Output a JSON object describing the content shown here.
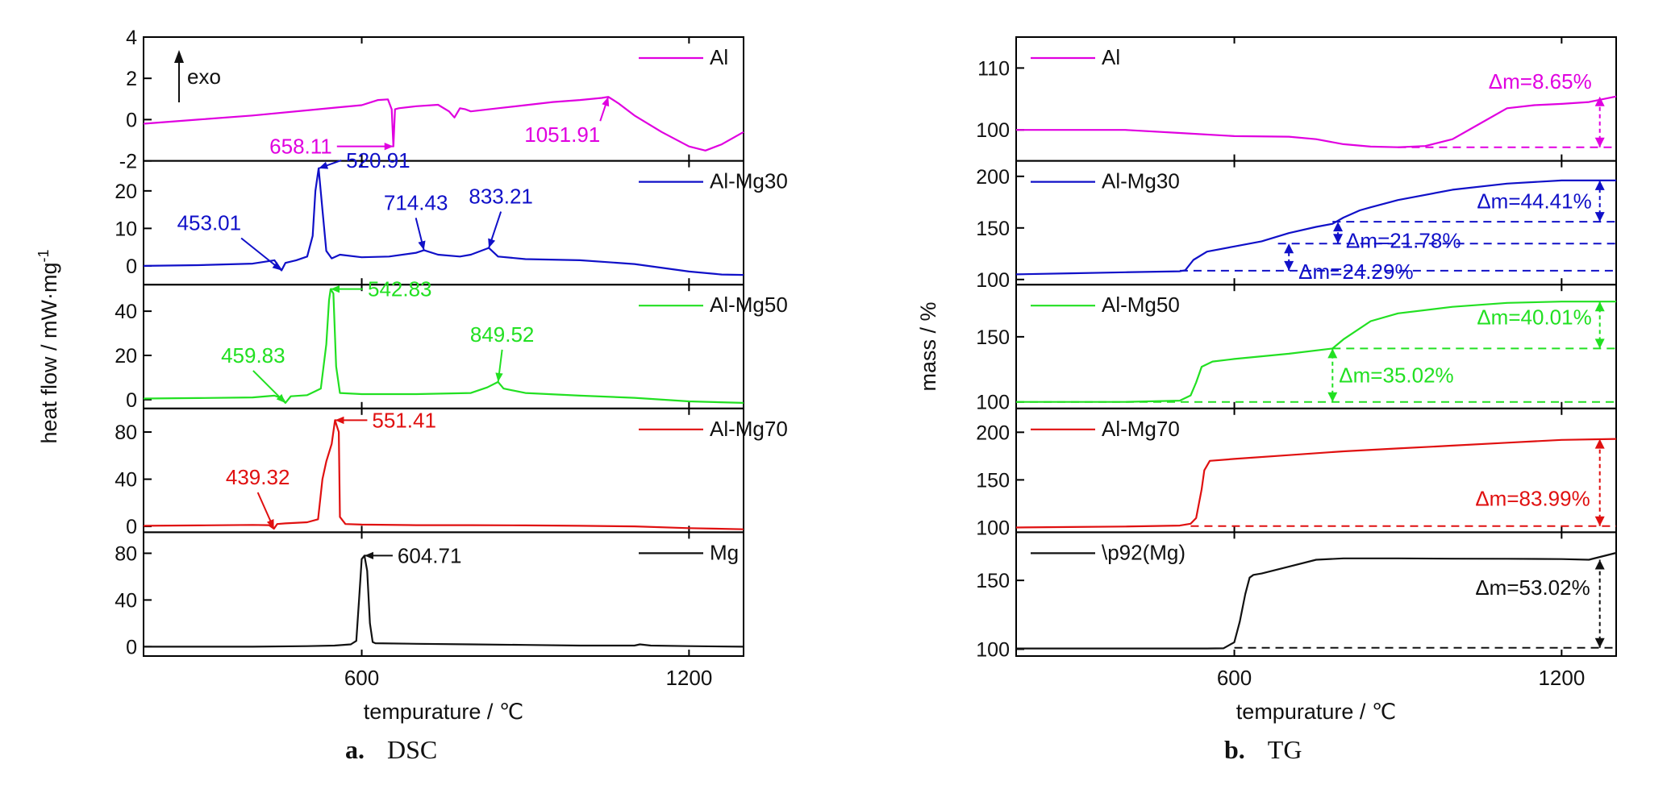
{
  "captions": [
    {
      "letter": "a.",
      "text": "DSC"
    },
    {
      "letter": "b.",
      "text": "TG"
    }
  ],
  "colors": {
    "Al": "#e000e0",
    "Al-Mg30": "#1010c8",
    "Al-Mg50": "#22e022",
    "Al-Mg70": "#e01010",
    "Mg": "#111111"
  },
  "exo_label": "exo",
  "chart_data": [
    {
      "type": "line",
      "id": "dsc",
      "xlabel": "tempurature / ℃",
      "ylabel": "heat flow / mW·mg",
      "ylabel_sup": "-1",
      "xlim": [
        200,
        1300
      ],
      "xticks": [
        600,
        1200
      ],
      "panels": [
        {
          "name": "Al",
          "color": "#e000e0",
          "ylim": [
            -2,
            4
          ],
          "yticks": [
            -2,
            0,
            2,
            4
          ],
          "x": [
            200,
            300,
            400,
            500,
            560,
            600,
            630,
            648,
            655,
            658,
            661,
            668,
            700,
            740,
            760,
            770,
            780,
            790,
            800,
            850,
            900,
            950,
            1000,
            1040,
            1052,
            1070,
            1100,
            1150,
            1200,
            1230,
            1260,
            1300
          ],
          "y": [
            -0.2,
            0,
            0.2,
            0.45,
            0.6,
            0.7,
            0.95,
            0.98,
            0.5,
            -1.3,
            0.5,
            0.55,
            0.65,
            0.72,
            0.4,
            0.1,
            0.55,
            0.5,
            0.4,
            0.55,
            0.7,
            0.85,
            0.95,
            1.05,
            1.1,
            0.8,
            0.2,
            -0.6,
            -1.3,
            -1.5,
            -1.2,
            -0.6
          ],
          "annotations": [
            {
              "label": "658.11",
              "x": 658,
              "y": -1.3
            },
            {
              "label": "1051.91",
              "x": 1052,
              "y": 1.1
            }
          ]
        },
        {
          "name": "Al-Mg30",
          "color": "#1010c8",
          "ylim": [
            -5,
            28
          ],
          "yticks": [
            0,
            10,
            20
          ],
          "x": [
            200,
            300,
            400,
            440,
            453,
            460,
            480,
            500,
            510,
            515,
            521,
            528,
            535,
            545,
            560,
            600,
            650,
            700,
            714,
            740,
            780,
            800,
            833,
            850,
            900,
            1000,
            1100,
            1200,
            1260,
            1300
          ],
          "y": [
            0,
            0.2,
            0.6,
            1.5,
            -1.2,
            0.8,
            1.5,
            2.5,
            8,
            20,
            26,
            15,
            4,
            2,
            3,
            2.3,
            2.5,
            3.5,
            4.2,
            3,
            2.5,
            3,
            4.8,
            2.5,
            1.8,
            1.5,
            0.5,
            -1.5,
            -2.3,
            -2.4
          ],
          "annotations": [
            {
              "label": "453.01",
              "x": 453,
              "y": -1.2
            },
            {
              "label": "520.91",
              "x": 521,
              "y": 26
            },
            {
              "label": "714.43",
              "x": 714,
              "y": 4.2
            },
            {
              "label": "833.21",
              "x": 833,
              "y": 4.8
            }
          ]
        },
        {
          "name": "Al-Mg50",
          "color": "#22e022",
          "ylim": [
            -4,
            52
          ],
          "yticks": [
            0,
            20,
            40
          ],
          "x": [
            200,
            300,
            400,
            440,
            455,
            460,
            470,
            500,
            525,
            535,
            540,
            543,
            548,
            553,
            560,
            600,
            700,
            800,
            830,
            850,
            860,
            900,
            1000,
            1100,
            1200,
            1300
          ],
          "y": [
            0.5,
            0.7,
            1,
            1.8,
            0.5,
            -1.5,
            1.5,
            2,
            5,
            25,
            45,
            50,
            48,
            15,
            3,
            2.5,
            2.5,
            3,
            5.5,
            8,
            5,
            3,
            1.8,
            0.8,
            -0.8,
            -1.5
          ],
          "annotations": [
            {
              "label": "459.83",
              "x": 460,
              "y": -1.5
            },
            {
              "label": "542.83",
              "x": 543,
              "y": 50
            },
            {
              "label": "849.52",
              "x": 850,
              "y": 8
            }
          ]
        },
        {
          "name": "Al-Mg70",
          "color": "#e01010",
          "ylim": [
            -5,
            100
          ],
          "yticks": [
            0,
            40,
            80
          ],
          "x": [
            200,
            300,
            400,
            430,
            439,
            445,
            460,
            500,
            520,
            528,
            535,
            545,
            551,
            558,
            560,
            570,
            600,
            700,
            800,
            900,
            1000,
            1100,
            1200,
            1300
          ],
          "y": [
            0.5,
            0.8,
            1.2,
            1,
            -2,
            2,
            2.5,
            3.5,
            6,
            40,
            55,
            70,
            90,
            80,
            8,
            2,
            1.5,
            1,
            1,
            0.8,
            0.5,
            0,
            -1.5,
            -2.5
          ],
          "annotations": [
            {
              "label": "439.32",
              "x": 439,
              "y": -2
            },
            {
              "label": "551.41",
              "x": 551,
              "y": 90
            }
          ]
        },
        {
          "name": "Mg",
          "color": "#111111",
          "ylim": [
            -8,
            98
          ],
          "yticks": [
            0,
            40,
            80
          ],
          "x": [
            200,
            300,
            400,
            500,
            550,
            580,
            590,
            595,
            600,
            605,
            610,
            615,
            620,
            625,
            700,
            800,
            900,
            1000,
            1100,
            1110,
            1130,
            1200,
            1300
          ],
          "y": [
            0,
            0,
            0,
            0.5,
            1,
            2,
            5,
            40,
            75,
            78,
            65,
            20,
            4,
            3,
            2.5,
            2,
            1.5,
            1,
            1,
            2,
            1,
            0.5,
            0
          ],
          "annotations": [
            {
              "label": "604.71",
              "x": 605,
              "y": 78
            }
          ]
        }
      ]
    },
    {
      "type": "line",
      "id": "tg",
      "xlabel": "tempurature / ℃",
      "ylabel": "mass / %",
      "xlim": [
        200,
        1300
      ],
      "xticks": [
        600,
        1200
      ],
      "panels": [
        {
          "name": "Al",
          "color": "#e000e0",
          "ylim": [
            95,
            115
          ],
          "yticks": [
            100,
            110
          ],
          "x": [
            200,
            300,
            400,
            500,
            600,
            700,
            750,
            800,
            850,
            900,
            950,
            1000,
            1050,
            1100,
            1150,
            1200,
            1250,
            1300
          ],
          "y": [
            100,
            100,
            100,
            99.5,
            99,
            98.9,
            98.5,
            97.7,
            97.3,
            97.2,
            97.4,
            98.5,
            101,
            103.5,
            104,
            104.2,
            104.5,
            105.4
          ],
          "deltas": [
            {
              "label": "Δm=8.65%",
              "x": 1270,
              "y_from": 97.2,
              "y_to": 105.4,
              "baseline_from": 900
            }
          ]
        },
        {
          "name": "Al-Mg30",
          "color": "#1010c8",
          "ylim": [
            95,
            215
          ],
          "yticks": [
            100,
            150,
            200
          ],
          "x": [
            200,
            300,
            400,
            500,
            510,
            525,
            550,
            600,
            650,
            700,
            750,
            780,
            800,
            830,
            850,
            900,
            1000,
            1100,
            1200,
            1300
          ],
          "y": [
            105,
            106,
            107,
            108,
            109,
            119,
            127,
            132,
            137,
            145,
            151,
            154,
            160,
            167,
            170,
            177,
            187,
            193,
            196,
            196
          ],
          "deltas": [
            {
              "label": "Δm=24.29%",
              "x": 700,
              "y_from": 108.5,
              "y_to": 134.8,
              "baseline_from": 500
            },
            {
              "label": "Δm=21.78%",
              "x": 790,
              "y_from": 134.8,
              "y_to": 156,
              "baseline_from": 680
            },
            {
              "label": "Δm=44.41%",
              "x": 1270,
              "y_from": 156,
              "y_to": 196,
              "baseline_from": 780
            }
          ]
        },
        {
          "name": "Al-Mg50",
          "color": "#22e022",
          "ylim": [
            95,
            190
          ],
          "yticks": [
            100,
            150
          ],
          "x": [
            200,
            300,
            400,
            500,
            520,
            530,
            540,
            560,
            600,
            700,
            780,
            800,
            850,
            900,
            1000,
            1100,
            1200,
            1300
          ],
          "y": [
            100,
            100,
            100,
            101,
            105,
            115,
            127,
            131,
            133,
            137,
            141,
            148,
            162,
            168,
            173,
            176,
            177,
            177
          ],
          "deltas": [
            {
              "label": "Δm=35.02%",
              "x": 780,
              "y_from": 100,
              "y_to": 141,
              "baseline_from": 200
            },
            {
              "label": "Δm=40.01%",
              "x": 1270,
              "y_from": 141,
              "y_to": 177,
              "baseline_from": 780
            }
          ]
        },
        {
          "name": "Al-Mg70",
          "color": "#e01010",
          "ylim": [
            95,
            225
          ],
          "yticks": [
            100,
            150,
            200
          ],
          "x": [
            200,
            300,
            400,
            500,
            520,
            530,
            540,
            545,
            555,
            600,
            700,
            800,
            900,
            1000,
            1100,
            1200,
            1300
          ],
          "y": [
            100,
            100.5,
            101,
            102,
            104,
            110,
            140,
            160,
            170,
            172,
            176,
            180,
            183,
            186,
            189,
            192,
            193
          ],
          "deltas": [
            {
              "label": "Δm=83.99%",
              "x": 1270,
              "y_from": 101.5,
              "y_to": 193,
              "baseline_from": 520
            }
          ]
        },
        {
          "name": "\\p92(Mg)",
          "color": "#111111",
          "ylim": [
            95,
            185
          ],
          "yticks": [
            100,
            150
          ],
          "x": [
            200,
            300,
            400,
            500,
            550,
            580,
            600,
            610,
            620,
            628,
            635,
            650,
            700,
            750,
            800,
            850,
            900,
            1000,
            1100,
            1200,
            1250,
            1300
          ],
          "y": [
            100.5,
            100.5,
            100.5,
            100.5,
            100.5,
            100.6,
            105,
            120,
            140,
            152,
            154,
            155,
            160,
            165,
            166,
            166,
            166,
            165.8,
            165.7,
            165.5,
            165,
            170
          ],
          "deltas": [
            {
              "label": "Δm=53.02%",
              "x": 1270,
              "y_from": 101,
              "y_to": 165,
              "baseline_from": 600
            }
          ]
        }
      ]
    }
  ]
}
